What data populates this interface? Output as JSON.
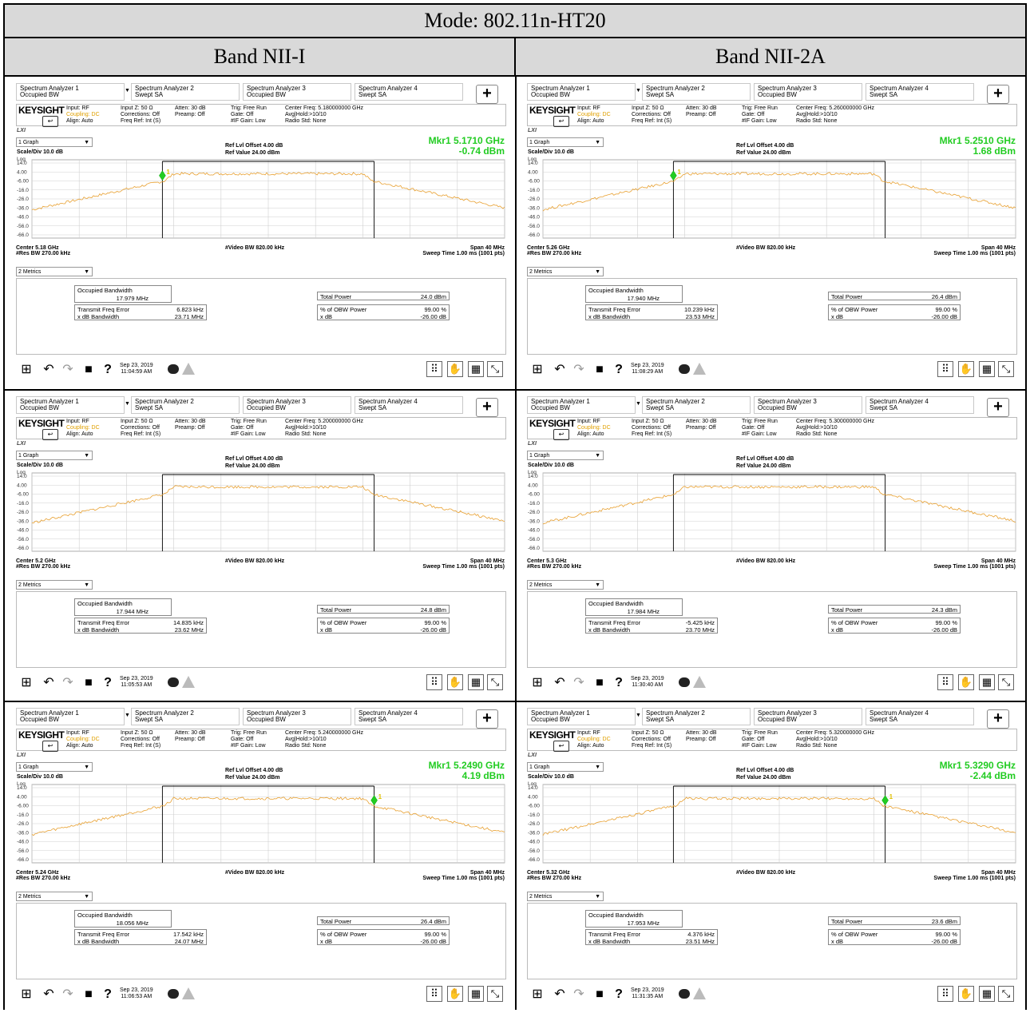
{
  "table": {
    "mode": "Mode: 802.11n-HT20",
    "bands": [
      "Band NII-I",
      "Band NII-2A"
    ]
  },
  "common": {
    "tabs": [
      {
        "name": "Spectrum Analyzer 1",
        "sub": "Occupied BW"
      },
      {
        "name": "Spectrum Analyzer 2",
        "sub": "Swept SA"
      },
      {
        "name": "Spectrum Analyzer 3",
        "sub": "Occupied BW"
      },
      {
        "name": "Spectrum Analyzer 4",
        "sub": "Swept SA"
      }
    ],
    "plus": "+",
    "brand": "KEYSIGHT",
    "input_rf": "Input: RF",
    "coupling": "Coupling: DC",
    "align": "Align: Auto",
    "input_z": "Input Z: 50 Ω",
    "corrections": "Corrections: Off",
    "freq_ref": "Freq Ref: Int (S)",
    "atten": "Atten: 30 dB",
    "preamp": "Preamp: Off",
    "trig": "Trig: Free Run",
    "gate": "Gate: Off",
    "if_gain": "#IF Gain: Low",
    "avg_hold": "Avg|Hold:>10/10",
    "radio_std": "Radio Std: None",
    "luw": "LXI",
    "graph_sel": "1 Graph",
    "scale_div": "Scale/Div 10.0 dB",
    "log": "Log",
    "ref_offset": "Ref Lvl Offset 4.00 dB",
    "ref_value": "Ref Value 24.00 dBm",
    "y_ticks": [
      "14.0",
      "4.00",
      "-6.00",
      "-16.0",
      "-26.0",
      "-36.0",
      "-46.0",
      "-56.0",
      "-66.0"
    ],
    "res_bw": "#Res BW 270.00 kHz",
    "video_bw": "#Video BW 820.00 kHz",
    "span": "Span 40 MHz",
    "sweep": "Sweep Time 1.00 ms (1001 pts)",
    "metrics_sel": "2 Metrics",
    "occ_bw_label": "Occupied Bandwidth",
    "tx_err_label": "Transmit Freq Error",
    "xdb_bw_label": "x dB Bandwidth",
    "total_power_label": "Total Power",
    "obw_label": "% of OBW Power",
    "xdb_label": "x dB",
    "obw_value": "99.00 %",
    "xdb_value": "-26.00 dB",
    "marker_color": "#22cc22",
    "trace_color": "#e8a030"
  },
  "panels": [
    {
      "center_freq": "Center Freq: 5.180000000 GHz",
      "center": "Center 5.18 GHz",
      "mkr_line1": "Mkr1  5.1710 GHz",
      "mkr_line2": "-0.74 dBm",
      "marker": "left",
      "occ_bw": "17.979 MHz",
      "tx_err": "6.823 kHz",
      "xdb_bw": "23.71 MHz",
      "total_power": "24.0 dBm",
      "date": "Sep 23, 2019",
      "time": "11:04:59 AM"
    },
    {
      "center_freq": "Center Freq: 5.260000000 GHz",
      "center": "Center 5.26 GHz",
      "mkr_line1": "Mkr1  5.2510 GHz",
      "mkr_line2": "1.68 dBm",
      "marker": "left",
      "occ_bw": "17.940 MHz",
      "tx_err": "10.239 kHz",
      "xdb_bw": "23.53 MHz",
      "total_power": "26.4 dBm",
      "date": "Sep 23, 2019",
      "time": "11:08:29 AM"
    },
    {
      "center_freq": "Center Freq: 5.200000000 GHz",
      "center": "Center 5.2 GHz",
      "mkr_line1": "",
      "mkr_line2": "",
      "marker": "none",
      "occ_bw": "17.944 MHz",
      "tx_err": "14.835 kHz",
      "xdb_bw": "23.62 MHz",
      "total_power": "24.8 dBm",
      "date": "Sep 23, 2019",
      "time": "11:05:53 AM"
    },
    {
      "center_freq": "Center Freq: 5.300000000 GHz",
      "center": "Center 5.3 GHz",
      "mkr_line1": "",
      "mkr_line2": "",
      "marker": "none",
      "occ_bw": "17.984 MHz",
      "tx_err": "-5.425 kHz",
      "xdb_bw": "23.70 MHz",
      "total_power": "24.3 dBm",
      "date": "Sep 23, 2019",
      "time": "11:30:40 AM"
    },
    {
      "center_freq": "Center Freq: 5.240000000 GHz",
      "center": "Center 5.24 GHz",
      "mkr_line1": "Mkr1  5.2490 GHz",
      "mkr_line2": "4.19 dBm",
      "marker": "right",
      "occ_bw": "18.056 MHz",
      "tx_err": "17.542 kHz",
      "xdb_bw": "24.07 MHz",
      "total_power": "26.4 dBm",
      "date": "Sep 23, 2019",
      "time": "11:06:53 AM"
    },
    {
      "center_freq": "Center Freq: 5.320000000 GHz",
      "center": "Center 5.32 GHz",
      "mkr_line1": "Mkr1  5.3290 GHz",
      "mkr_line2": "-2.44 dBm",
      "marker": "right",
      "occ_bw": "17.953 MHz",
      "tx_err": "4.376 kHz",
      "xdb_bw": "23.51 MHz",
      "total_power": "23.6 dBm",
      "date": "Sep 23, 2019",
      "time": "11:31:35 AM"
    }
  ]
}
